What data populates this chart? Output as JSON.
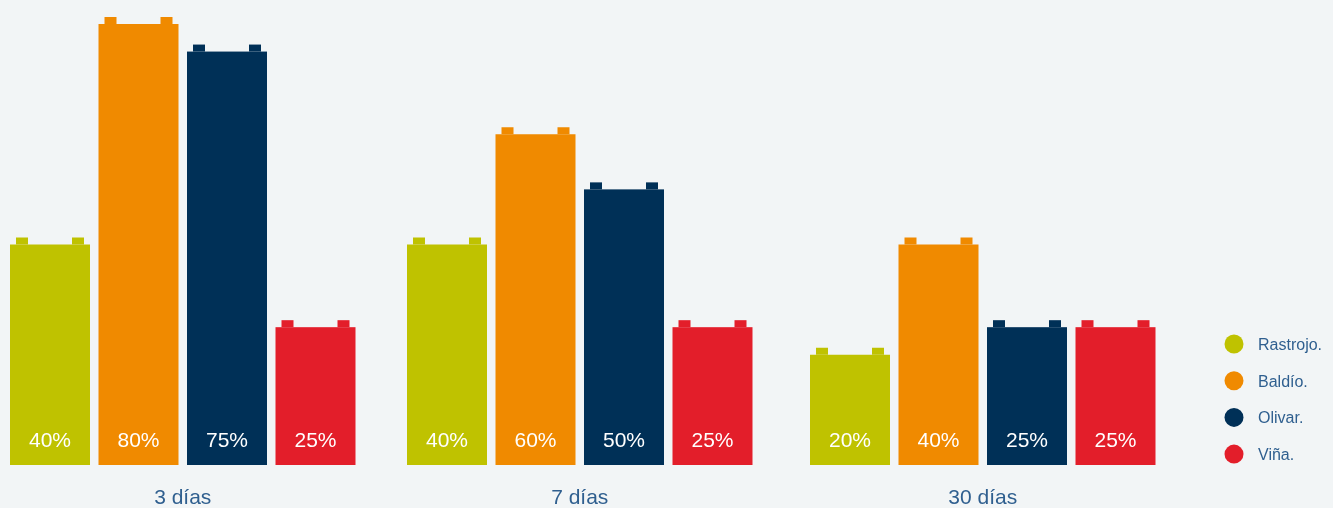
{
  "chart_data": {
    "type": "bar",
    "categories": [
      "3 días",
      "7 días",
      "30 días"
    ],
    "legend": "right",
    "series": [
      {
        "name": "Rastrojo.",
        "color": "#bfc200",
        "values": [
          40,
          40,
          20
        ],
        "value_labels": [
          "40%",
          "40%",
          "20%"
        ]
      },
      {
        "name": "Baldío.",
        "color": "#f08a00",
        "values": [
          80,
          60,
          40
        ],
        "value_labels": [
          "80%",
          "60%",
          "40%"
        ]
      },
      {
        "name": "Olivar.",
        "color": "#003057",
        "values": [
          75,
          50,
          25
        ],
        "value_labels": [
          "75%",
          "50%",
          "25%"
        ]
      },
      {
        "name": "Viña.",
        "color": "#e31e2a",
        "values": [
          25,
          25,
          25
        ],
        "value_labels": [
          "25%",
          "25%",
          "25%"
        ]
      }
    ]
  }
}
